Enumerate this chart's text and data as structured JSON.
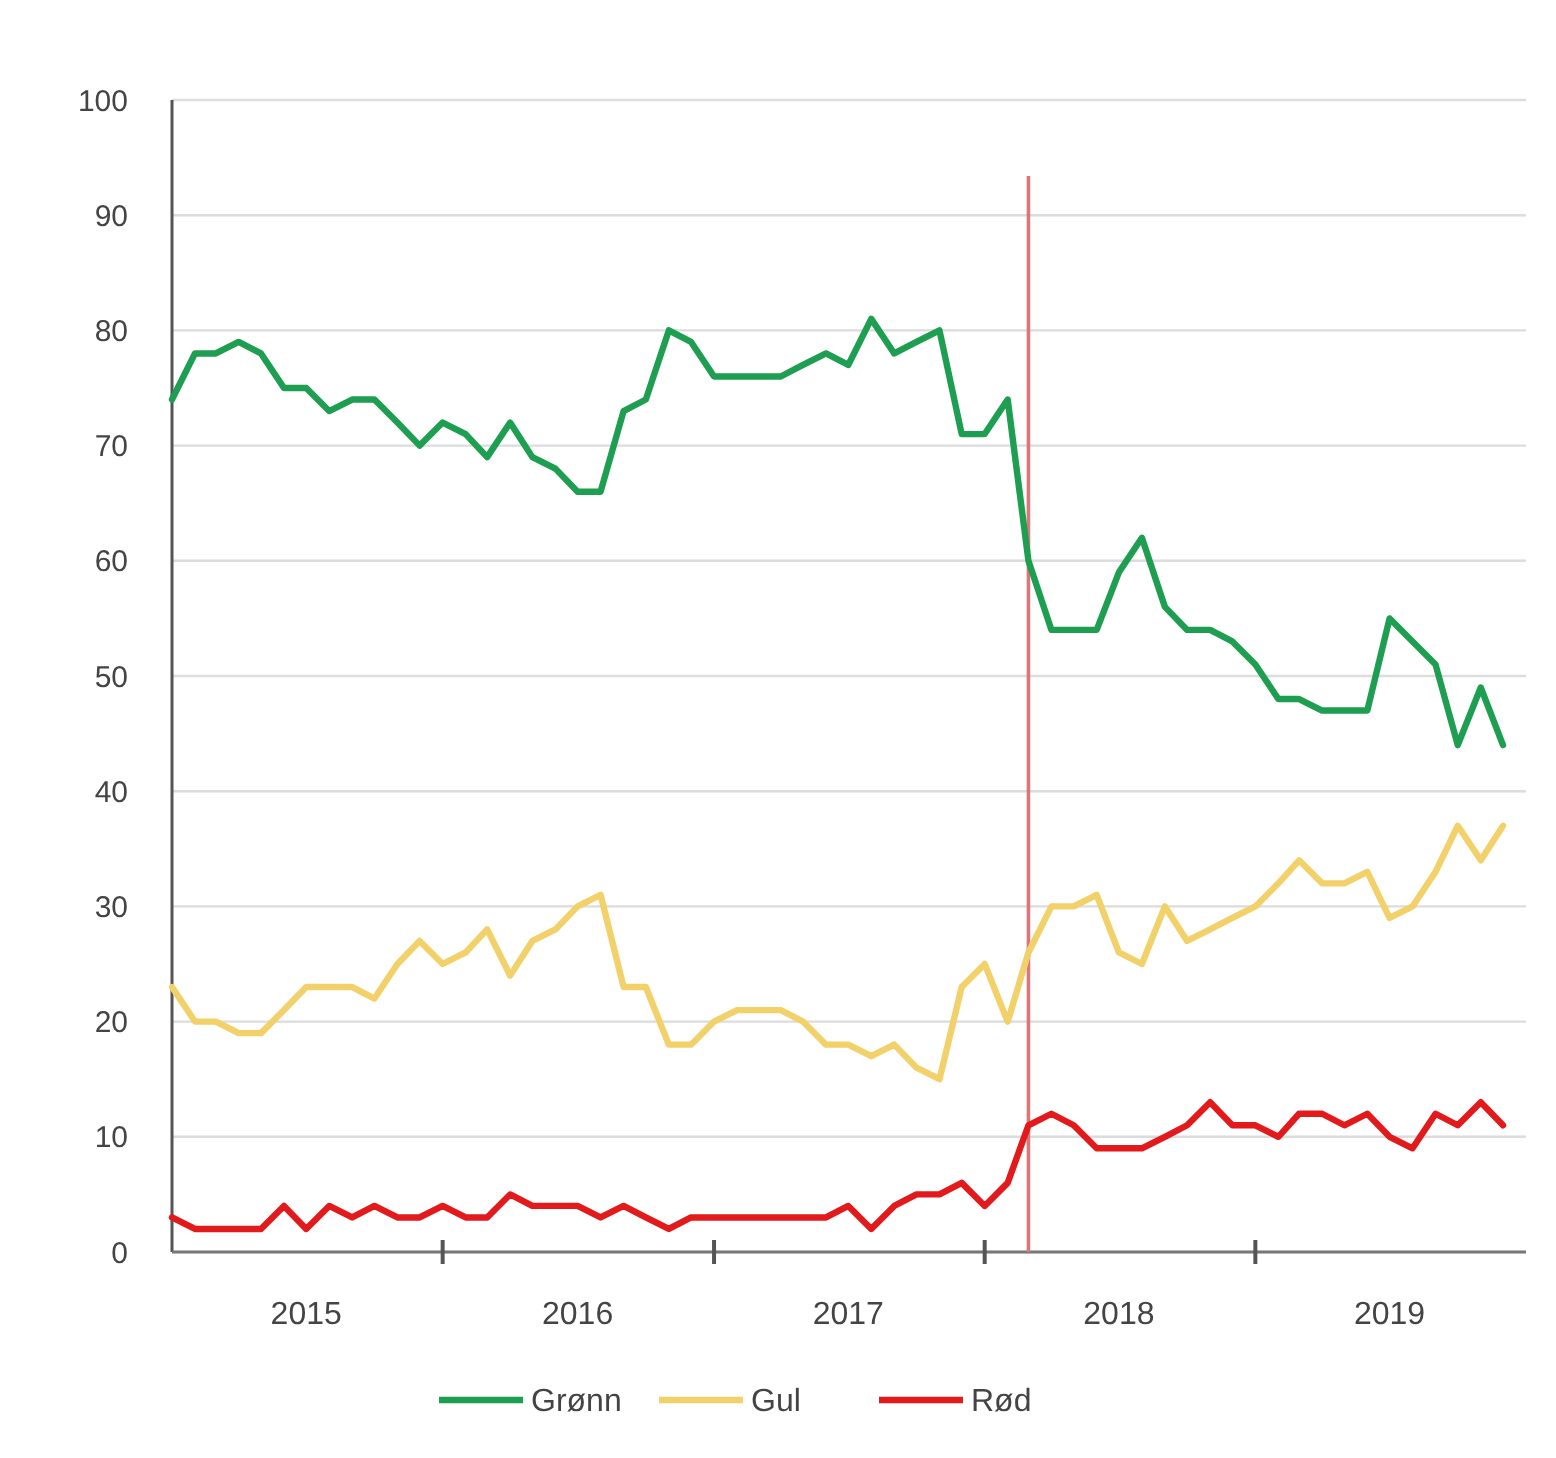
{
  "chart_data": {
    "type": "line",
    "x": [
      "2015-01",
      "2015-02",
      "2015-03",
      "2015-04",
      "2015-05",
      "2015-06",
      "2015-07",
      "2015-08",
      "2015-09",
      "2015-10",
      "2015-11",
      "2015-12",
      "2016-01",
      "2016-02",
      "2016-03",
      "2016-04",
      "2016-05",
      "2016-06",
      "2016-07",
      "2016-08",
      "2016-09",
      "2016-10",
      "2016-11",
      "2016-12",
      "2017-01",
      "2017-02",
      "2017-03",
      "2017-04",
      "2017-05",
      "2017-06",
      "2017-07",
      "2017-08",
      "2017-09",
      "2017-10",
      "2017-11",
      "2017-12",
      "2018-01",
      "2018-02",
      "2018-03",
      "2018-04",
      "2018-05",
      "2018-06",
      "2018-07",
      "2018-08",
      "2018-09",
      "2018-10",
      "2018-11",
      "2018-12",
      "2019-01",
      "2019-02",
      "2019-03",
      "2019-04",
      "2019-05",
      "2019-06",
      "2019-07",
      "2019-08",
      "2019-09",
      "2019-10",
      "2019-11",
      "2019-12"
    ],
    "series": [
      {
        "name": "Grønn",
        "color": "#1e9e50",
        "values": [
          74,
          78,
          78,
          79,
          78,
          75,
          75,
          73,
          74,
          74,
          72,
          70,
          72,
          71,
          69,
          72,
          69,
          68,
          66,
          66,
          73,
          74,
          80,
          79,
          76,
          76,
          76,
          76,
          77,
          78,
          77,
          81,
          78,
          79,
          80,
          71,
          71,
          74,
          60,
          54,
          54,
          54,
          59,
          62,
          56,
          54,
          54,
          53,
          51,
          48,
          48,
          47,
          47,
          47,
          55,
          53,
          51,
          44,
          49,
          44
        ]
      },
      {
        "name": "Gul",
        "color": "#f2d16b",
        "values": [
          23,
          20,
          20,
          19,
          19,
          21,
          23,
          23,
          23,
          22,
          25,
          27,
          25,
          26,
          28,
          24,
          27,
          28,
          30,
          31,
          23,
          23,
          18,
          18,
          20,
          21,
          21,
          21,
          20,
          18,
          18,
          17,
          18,
          16,
          15,
          23,
          25,
          20,
          26,
          30,
          30,
          31,
          26,
          25,
          30,
          27,
          28,
          29,
          30,
          32,
          34,
          32,
          32,
          33,
          29,
          30,
          33,
          37,
          34,
          37
        ]
      },
      {
        "name": "Rød",
        "color": "#e31a1c",
        "values": [
          3,
          2,
          2,
          2,
          2,
          4,
          2,
          4,
          3,
          4,
          3,
          3,
          4,
          3,
          3,
          5,
          4,
          4,
          4,
          3,
          4,
          3,
          2,
          3,
          3,
          3,
          3,
          3,
          3,
          3,
          4,
          2,
          4,
          5,
          5,
          6,
          4,
          6,
          11,
          12,
          11,
          9,
          9,
          9,
          10,
          11,
          13,
          11,
          11,
          10,
          12,
          12,
          11,
          12,
          10,
          9,
          12,
          11,
          13,
          11
        ]
      }
    ],
    "xlim": [
      "2015-01",
      "2020-01"
    ],
    "xticks": [
      {
        "value": "2015-07",
        "label": "2015"
      },
      {
        "value": "2016-01",
        "label": null
      },
      {
        "value": "2016-07",
        "label": "2016"
      },
      {
        "value": "2017-01",
        "label": null
      },
      {
        "value": "2017-07",
        "label": "2017"
      },
      {
        "value": "2018-01",
        "label": null
      },
      {
        "value": "2018-07",
        "label": "2018"
      },
      {
        "value": "2019-01",
        "label": null
      },
      {
        "value": "2019-07",
        "label": "2019"
      }
    ],
    "ylim": [
      0,
      100
    ],
    "yticks": [
      0,
      10,
      20,
      30,
      40,
      50,
      60,
      70,
      80,
      90,
      100
    ],
    "grid": "y",
    "legend": "bottom",
    "marker": "none",
    "line_style": "solid",
    "ref_lines": [
      {
        "axis": "x",
        "value": "2018-03",
        "color": "#d9777a"
      }
    ]
  }
}
